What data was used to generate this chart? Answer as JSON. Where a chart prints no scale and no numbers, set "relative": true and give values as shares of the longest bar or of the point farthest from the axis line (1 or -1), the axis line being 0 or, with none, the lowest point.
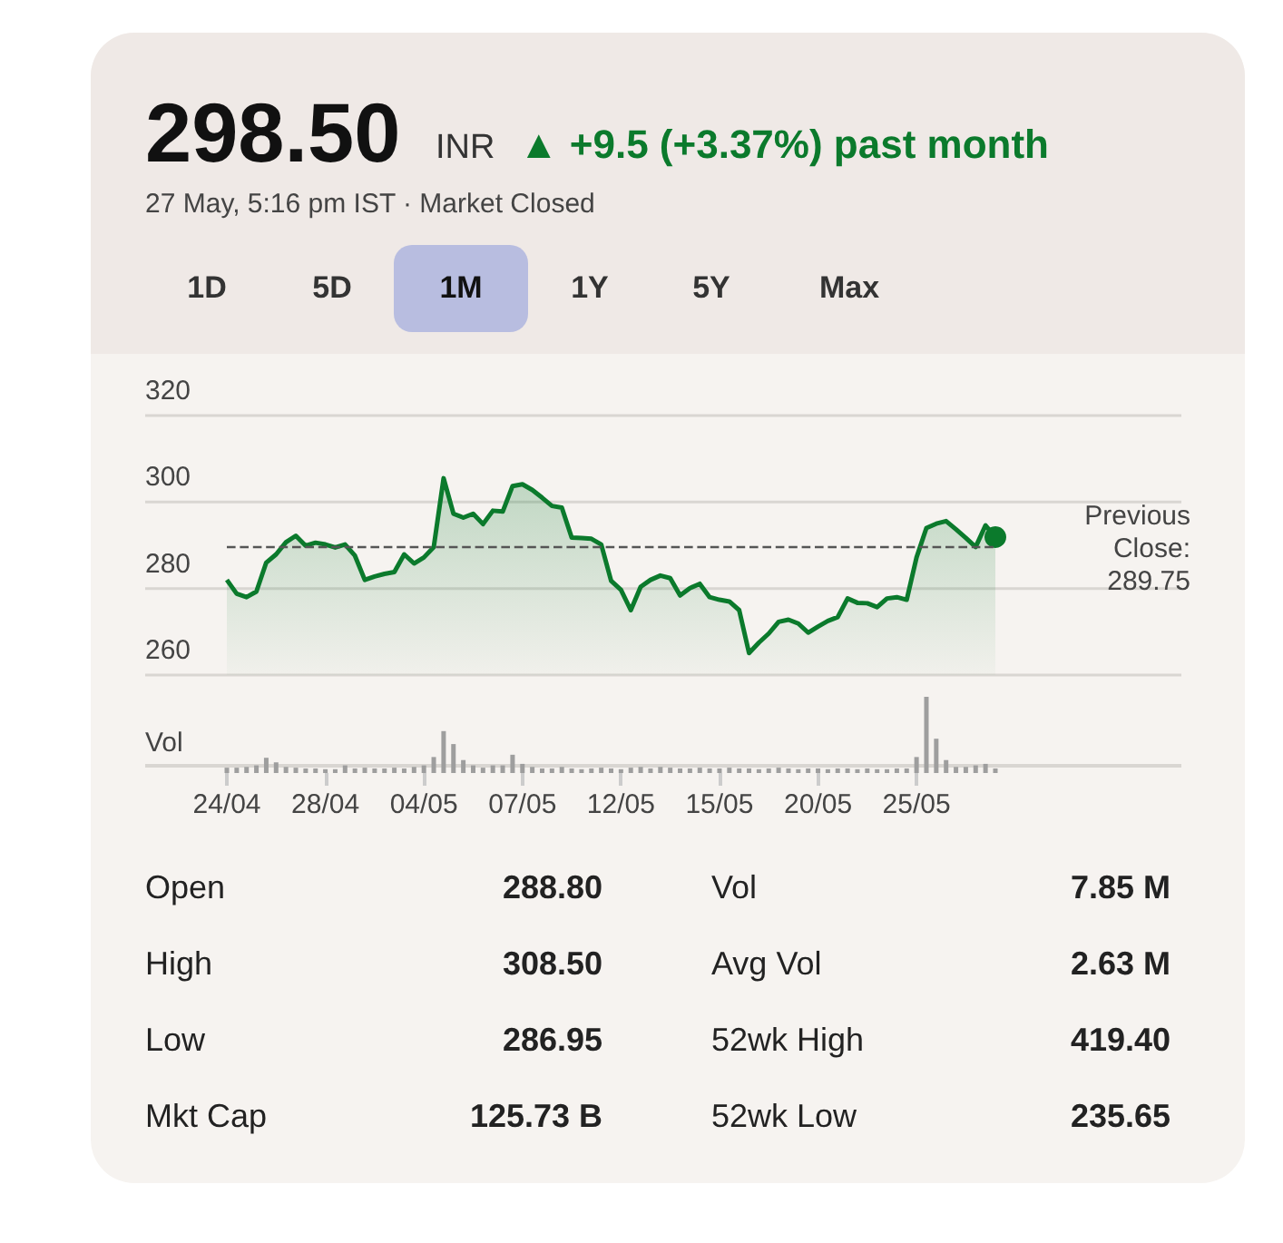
{
  "chart_data": [
    {
      "type": "area",
      "title": "298.50",
      "subtitle": "27 May, 5:16 pm IST · Market Closed",
      "annotations": [
        "INR",
        "▲ +9.5 (+3.37%) past month",
        "1D",
        "5D",
        "1M",
        "1Y",
        "5Y",
        "Max"
      ],
      "categories": [
        null,
        null,
        null,
        null,
        null,
        null,
        null,
        null,
        null,
        null,
        null,
        null,
        null,
        null,
        null,
        null,
        null,
        null,
        null,
        null,
        null,
        null,
        null,
        null,
        null,
        null,
        null,
        null,
        null,
        null,
        null,
        null,
        null,
        null,
        null,
        null,
        null,
        null,
        null,
        null,
        null,
        null,
        null,
        null,
        null,
        null,
        null,
        null,
        null,
        null,
        null,
        null,
        null,
        null,
        null,
        null,
        null,
        null,
        null,
        null,
        null,
        null,
        null,
        null,
        null,
        null,
        null,
        null,
        null,
        null,
        null,
        null,
        null,
        null,
        null,
        null,
        null,
        null,
        null
      ],
      "values": [
        282.0,
        278.8,
        278.0,
        279.3,
        286.0,
        287.9,
        290.7,
        292.2,
        289.9,
        290.6,
        290.2,
        289.5,
        290.2,
        287.6,
        282.0,
        282.8,
        283.4,
        283.8,
        287.9,
        285.8,
        287.2,
        289.6,
        305.5,
        297.3,
        296.4,
        297.3,
        294.9,
        298.0,
        297.8,
        303.7,
        304.1,
        302.8,
        301.0,
        299.1,
        298.7,
        291.8,
        291.7,
        291.5,
        290.2,
        281.8,
        279.7,
        275.0,
        280.4,
        282.0,
        283.0,
        282.4,
        278.4,
        280.1,
        281.1,
        278.0,
        277.4,
        277.0,
        275.0,
        265.1,
        267.5,
        269.6,
        272.3,
        272.8,
        271.9,
        269.8,
        271.2,
        272.5,
        273.4,
        277.7,
        276.7,
        276.6,
        275.7,
        277.7,
        278.0,
        277.4,
        287.2,
        294.0,
        295.0,
        295.6,
        293.7,
        291.7,
        289.6,
        294.6,
        291.9
      ],
      "color": "#0b7a2c",
      "ylim": [
        260,
        320
      ],
      "yticks": [
        260,
        280,
        300,
        320
      ],
      "grid": "y",
      "tick_labels": "y",
      "ref_lines": [
        {
          "axis": "y",
          "value": 289.75,
          "label": "Previous Close: 289.75",
          "line_style": "dashed",
          "color": "#555555"
        }
      ]
    },
    {
      "type": "bar",
      "relative": true,
      "ylabel": "Vol",
      "tick_labels": "x",
      "color": "#9e9e9e",
      "categories": [
        "24/04",
        null,
        null,
        null,
        null,
        null,
        null,
        null,
        null,
        null,
        "28/04",
        null,
        null,
        null,
        null,
        null,
        null,
        null,
        null,
        null,
        "04/05",
        null,
        null,
        null,
        null,
        null,
        null,
        null,
        null,
        null,
        "07/05",
        null,
        null,
        null,
        null,
        null,
        null,
        null,
        null,
        null,
        "12/05",
        null,
        null,
        null,
        null,
        null,
        null,
        null,
        null,
        null,
        "15/05",
        null,
        null,
        null,
        null,
        null,
        null,
        null,
        null,
        null,
        "20/05",
        null,
        null,
        null,
        null,
        null,
        null,
        null,
        null,
        null,
        "25/05",
        null,
        null,
        null,
        null,
        null,
        null,
        null,
        null
      ],
      "values": [
        0.07,
        0.07,
        0.08,
        0.1,
        0.2,
        0.14,
        0.08,
        0.07,
        0.06,
        0.06,
        0.05,
        0.05,
        0.1,
        0.06,
        0.07,
        0.06,
        0.06,
        0.07,
        0.06,
        0.08,
        0.1,
        0.21,
        0.55,
        0.38,
        0.17,
        0.1,
        0.07,
        0.1,
        0.1,
        0.24,
        0.12,
        0.08,
        0.06,
        0.06,
        0.08,
        0.06,
        0.05,
        0.06,
        0.07,
        0.06,
        0.05,
        0.07,
        0.08,
        0.06,
        0.08,
        0.07,
        0.06,
        0.06,
        0.07,
        0.06,
        0.06,
        0.07,
        0.06,
        0.06,
        0.05,
        0.06,
        0.07,
        0.06,
        0.05,
        0.06,
        0.06,
        0.05,
        0.06,
        0.06,
        0.05,
        0.06,
        0.05,
        0.05,
        0.06,
        0.06,
        0.21,
        1,
        0.45,
        0.17,
        0.08,
        0.08,
        0.1,
        0.12,
        0.06
      ]
    },
    {
      "type": "other",
      "annotations": [
        "Open",
        "288.80",
        "Vol",
        "7.85 M",
        "High",
        "308.50",
        "Avg Vol",
        "2.63 M",
        "Low",
        "286.95",
        "52wk High",
        "419.40",
        "Mkt Cap",
        "125.73 B",
        "52wk Low",
        "235.65"
      ]
    }
  ]
}
